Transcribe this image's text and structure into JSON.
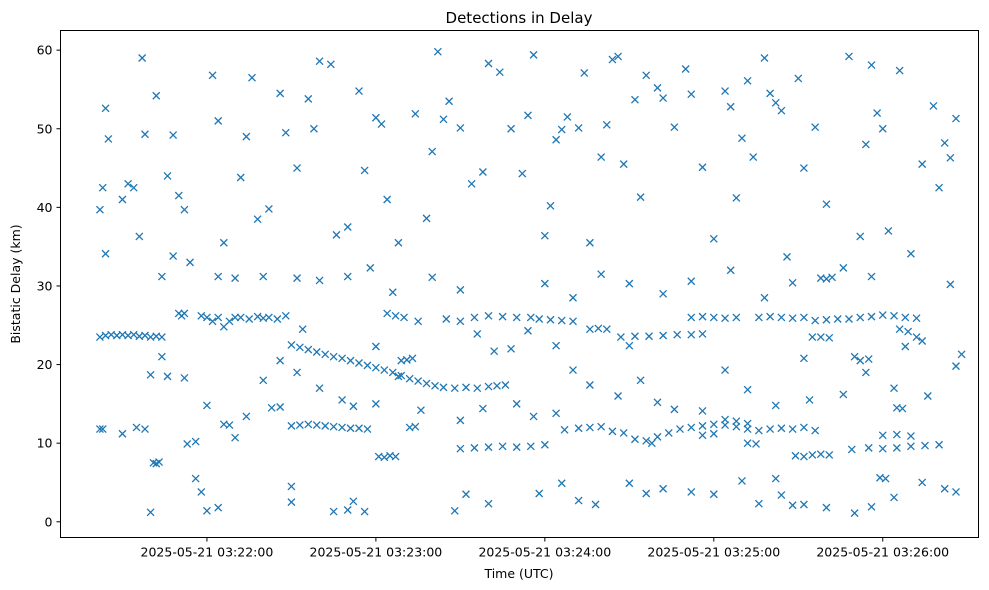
{
  "chart_data": {
    "type": "scatter",
    "title": "Detections in Delay",
    "xlabel": "Time (UTC)",
    "ylabel": "Bistatic Delay (km)",
    "x_origin": "2025-05-21 03:21:00",
    "x_unit": "seconds",
    "xlim": [
      8,
      334
    ],
    "ylim": [
      -2,
      62.5
    ],
    "x_ticks": [
      {
        "value": 60,
        "label": "2025-05-21 03:22:00"
      },
      {
        "value": 120,
        "label": "2025-05-21 03:23:00"
      },
      {
        "value": 180,
        "label": "2025-05-21 03:24:00"
      },
      {
        "value": 240,
        "label": "2025-05-21 03:25:00"
      },
      {
        "value": 300,
        "label": "2025-05-21 03:26:00"
      }
    ],
    "y_ticks": [
      {
        "value": 0,
        "label": "0"
      },
      {
        "value": 10,
        "label": "10"
      },
      {
        "value": 20,
        "label": "20"
      },
      {
        "value": 30,
        "label": "30"
      },
      {
        "value": 40,
        "label": "40"
      },
      {
        "value": 50,
        "label": "50"
      },
      {
        "value": 60,
        "label": "60"
      }
    ],
    "grid": false,
    "marker": "x",
    "color": "#1f77b4",
    "points": [
      [
        22,
        23.5
      ],
      [
        24,
        23.7
      ],
      [
        26,
        23.8
      ],
      [
        28,
        23.7
      ],
      [
        30,
        23.8
      ],
      [
        32,
        23.7
      ],
      [
        34,
        23.8
      ],
      [
        36,
        23.6
      ],
      [
        38,
        23.7
      ],
      [
        40,
        23.5
      ],
      [
        42,
        23.6
      ],
      [
        44,
        23.5
      ],
      [
        22,
        11.8
      ],
      [
        23,
        11.8
      ],
      [
        30,
        11.2
      ],
      [
        35,
        12
      ],
      [
        38,
        11.8
      ],
      [
        41,
        7.5
      ],
      [
        42,
        7.4
      ],
      [
        43,
        7.6
      ],
      [
        50,
        26.5
      ],
      [
        51,
        26.2
      ],
      [
        52,
        26.5
      ],
      [
        58,
        26.2
      ],
      [
        60,
        26
      ],
      [
        62,
        25.5
      ],
      [
        64,
        26
      ],
      [
        66,
        24.8
      ],
      [
        68,
        25.5
      ],
      [
        70,
        26
      ],
      [
        66,
        12.4
      ],
      [
        68,
        12.3
      ],
      [
        72,
        26
      ],
      [
        75,
        25.8
      ],
      [
        78,
        26.1
      ],
      [
        80,
        25.9
      ],
      [
        82,
        26
      ],
      [
        85,
        25.8
      ],
      [
        88,
        26.2
      ],
      [
        83,
        14.5
      ],
      [
        86,
        14.6
      ],
      [
        90,
        22.5
      ],
      [
        93,
        22.2
      ],
      [
        96,
        21.9
      ],
      [
        99,
        21.6
      ],
      [
        102,
        21.3
      ],
      [
        105,
        21
      ],
      [
        108,
        20.8
      ],
      [
        111,
        20.5
      ],
      [
        114,
        20.2
      ],
      [
        117,
        19.9
      ],
      [
        120,
        19.6
      ],
      [
        123,
        19.3
      ],
      [
        126,
        19
      ],
      [
        129,
        18.6
      ],
      [
        132,
        18.2
      ],
      [
        135,
        17.9
      ],
      [
        138,
        17.6
      ],
      [
        141,
        17.3
      ],
      [
        144,
        17.1
      ],
      [
        148,
        17
      ],
      [
        152,
        17.1
      ],
      [
        156,
        17
      ],
      [
        160,
        17.2
      ],
      [
        163,
        17.3
      ],
      [
        166,
        17.4
      ],
      [
        90,
        12.2
      ],
      [
        93,
        12.3
      ],
      [
        96,
        12.4
      ],
      [
        99,
        12.3
      ],
      [
        102,
        12.2
      ],
      [
        105,
        12.1
      ],
      [
        108,
        12.0
      ],
      [
        111,
        11.9
      ],
      [
        114,
        11.9
      ],
      [
        117,
        11.8
      ],
      [
        121,
        8.3
      ],
      [
        123,
        8.2
      ],
      [
        125,
        8.4
      ],
      [
        127,
        8.3
      ],
      [
        132,
        12
      ],
      [
        134,
        12.1
      ],
      [
        124,
        26.5
      ],
      [
        127,
        26.2
      ],
      [
        130,
        26
      ],
      [
        135,
        25.5
      ],
      [
        129,
        20.5
      ],
      [
        131,
        20.6
      ],
      [
        133,
        20.8
      ],
      [
        145,
        25.8
      ],
      [
        150,
        25.5
      ],
      [
        155,
        26
      ],
      [
        160,
        26.2
      ],
      [
        165,
        26.1
      ],
      [
        170,
        26
      ],
      [
        175,
        26
      ],
      [
        178,
        25.8
      ],
      [
        182,
        25.7
      ],
      [
        186,
        25.6
      ],
      [
        190,
        25.5
      ],
      [
        150,
        9.3
      ],
      [
        155,
        9.4
      ],
      [
        160,
        9.5
      ],
      [
        165,
        9.6
      ],
      [
        170,
        9.5
      ],
      [
        175,
        9.6
      ],
      [
        180,
        9.8
      ],
      [
        187,
        11.7
      ],
      [
        192,
        11.9
      ],
      [
        196,
        12
      ],
      [
        200,
        12.1
      ],
      [
        204,
        11.5
      ],
      [
        208,
        11.3
      ],
      [
        212,
        10.5
      ],
      [
        216,
        10.3
      ],
      [
        218,
        10
      ],
      [
        196,
        24.5
      ],
      [
        199,
        24.6
      ],
      [
        202,
        24.5
      ],
      [
        207,
        23.5
      ],
      [
        212,
        23.6
      ],
      [
        217,
        23.6
      ],
      [
        222,
        23.7
      ],
      [
        227,
        23.8
      ],
      [
        232,
        23.8
      ],
      [
        236,
        23.9
      ],
      [
        220,
        10.8
      ],
      [
        224,
        11.3
      ],
      [
        228,
        11.8
      ],
      [
        232,
        12
      ],
      [
        236,
        12.2
      ],
      [
        240,
        12.4
      ],
      [
        244,
        12.3
      ],
      [
        248,
        12.1
      ],
      [
        252,
        11.8
      ],
      [
        256,
        11.6
      ],
      [
        260,
        11.8
      ],
      [
        264,
        11.9
      ],
      [
        268,
        11.8
      ],
      [
        272,
        12
      ],
      [
        276,
        11.6
      ],
      [
        244,
        13
      ],
      [
        248,
        12.8
      ],
      [
        252,
        12.5
      ],
      [
        240,
        11.2
      ],
      [
        236,
        11
      ],
      [
        252,
        10
      ],
      [
        255,
        9.9
      ],
      [
        262,
        5.5
      ],
      [
        232,
        26
      ],
      [
        236,
        26.1
      ],
      [
        240,
        26
      ],
      [
        244,
        25.9
      ],
      [
        248,
        26
      ],
      [
        256,
        26
      ],
      [
        260,
        26.1
      ],
      [
        264,
        26
      ],
      [
        268,
        25.9
      ],
      [
        272,
        26
      ],
      [
        269,
        8.4
      ],
      [
        272,
        8.3
      ],
      [
        275,
        8.5
      ],
      [
        278,
        8.6
      ],
      [
        281,
        8.5
      ],
      [
        275,
        23.5
      ],
      [
        278,
        23.5
      ],
      [
        281,
        23.4
      ],
      [
        276,
        25.6
      ],
      [
        280,
        25.7
      ],
      [
        284,
        25.8
      ],
      [
        288,
        25.8
      ],
      [
        292,
        26
      ],
      [
        296,
        26.1
      ],
      [
        300,
        26.3
      ],
      [
        304,
        26.2
      ],
      [
        308,
        26
      ],
      [
        312,
        25.9
      ],
      [
        306,
        24.5
      ],
      [
        309,
        24.2
      ],
      [
        312,
        23.5
      ],
      [
        314,
        23
      ],
      [
        289,
        9.2
      ],
      [
        295,
        9.4
      ],
      [
        300,
        9.3
      ],
      [
        305,
        9.4
      ],
      [
        310,
        9.6
      ],
      [
        315,
        9.7
      ],
      [
        320,
        9.8
      ],
      [
        278,
        31
      ],
      [
        280,
        30.9
      ],
      [
        282,
        31.1
      ],
      [
        305,
        14.5
      ],
      [
        307,
        14.4
      ],
      [
        300,
        11
      ],
      [
        305,
        11.1
      ],
      [
        310,
        10.9
      ],
      [
        299,
        5.6
      ],
      [
        301,
        5.5
      ],
      [
        292,
        20.5
      ],
      [
        295,
        20.7
      ],
      [
        24,
        52.6
      ],
      [
        25,
        48.7
      ],
      [
        23,
        42.5
      ],
      [
        22,
        39.7
      ],
      [
        24,
        34.1
      ],
      [
        30,
        41
      ],
      [
        32,
        43
      ],
      [
        34,
        42.5
      ],
      [
        37,
        59
      ],
      [
        38,
        49.3
      ],
      [
        36,
        36.3
      ],
      [
        42,
        54.2
      ],
      [
        46,
        44
      ],
      [
        50,
        41.5
      ],
      [
        52,
        39.7
      ],
      [
        48,
        49.2
      ],
      [
        48,
        33.8
      ],
      [
        44,
        31.2
      ],
      [
        44,
        21
      ],
      [
        54,
        33
      ],
      [
        53,
        9.9
      ],
      [
        56,
        5.5
      ],
      [
        58,
        3.8
      ],
      [
        64,
        1.8
      ],
      [
        62,
        56.8
      ],
      [
        64,
        51
      ],
      [
        66,
        35.5
      ],
      [
        70,
        31
      ],
      [
        72,
        43.8
      ],
      [
        74,
        49
      ],
      [
        76,
        56.5
      ],
      [
        78,
        38.5
      ],
      [
        82,
        39.8
      ],
      [
        86,
        54.5
      ],
      [
        88,
        49.5
      ],
      [
        90,
        4.5
      ],
      [
        92,
        45
      ],
      [
        96,
        53.8
      ],
      [
        98,
        50
      ],
      [
        100,
        58.6
      ],
      [
        104,
        58.2
      ],
      [
        106,
        36.5
      ],
      [
        110,
        37.5
      ],
      [
        114,
        54.8
      ],
      [
        116,
        44.7
      ],
      [
        120,
        51.4
      ],
      [
        122,
        50.6
      ],
      [
        124,
        41
      ],
      [
        128,
        35.5
      ],
      [
        134,
        51.9
      ],
      [
        138,
        38.6
      ],
      [
        140,
        47.1
      ],
      [
        142,
        59.8
      ],
      [
        144,
        51.2
      ],
      [
        146,
        53.5
      ],
      [
        150,
        50.1
      ],
      [
        154,
        43
      ],
      [
        158,
        44.5
      ],
      [
        160,
        58.3
      ],
      [
        164,
        57.2
      ],
      [
        168,
        50
      ],
      [
        172,
        44.3
      ],
      [
        174,
        51.7
      ],
      [
        176,
        59.4
      ],
      [
        180,
        36.4
      ],
      [
        182,
        40.2
      ],
      [
        184,
        48.6
      ],
      [
        186,
        49.9
      ],
      [
        188,
        51.5
      ],
      [
        192,
        50.1
      ],
      [
        194,
        57.1
      ],
      [
        196,
        35.5
      ],
      [
        200,
        46.4
      ],
      [
        202,
        50.5
      ],
      [
        204,
        58.8
      ],
      [
        206,
        59.2
      ],
      [
        208,
        45.5
      ],
      [
        212,
        53.7
      ],
      [
        214,
        41.3
      ],
      [
        216,
        56.8
      ],
      [
        220,
        55.2
      ],
      [
        222,
        53.9
      ],
      [
        226,
        50.2
      ],
      [
        230,
        57.6
      ],
      [
        232,
        54.4
      ],
      [
        236,
        45.1
      ],
      [
        240,
        36
      ],
      [
        244,
        54.8
      ],
      [
        246,
        52.8
      ],
      [
        248,
        41.2
      ],
      [
        250,
        48.8
      ],
      [
        252,
        56.1
      ],
      [
        254,
        46.4
      ],
      [
        258,
        59
      ],
      [
        260,
        54.5
      ],
      [
        262,
        53.3
      ],
      [
        264,
        52.3
      ],
      [
        266,
        33.7
      ],
      [
        270,
        56.4
      ],
      [
        272,
        45
      ],
      [
        276,
        50.2
      ],
      [
        280,
        40.4
      ],
      [
        288,
        59.2
      ],
      [
        292,
        36.3
      ],
      [
        294,
        48
      ],
      [
        296,
        58.1
      ],
      [
        298,
        52
      ],
      [
        300,
        50
      ],
      [
        302,
        37
      ],
      [
        306,
        57.4
      ],
      [
        310,
        34.1
      ],
      [
        314,
        45.5
      ],
      [
        318,
        52.9
      ],
      [
        322,
        48.2
      ],
      [
        324,
        46.3
      ],
      [
        326,
        51.3
      ],
      [
        320,
        42.5
      ],
      [
        324,
        30.2
      ],
      [
        328,
        21.3
      ],
      [
        40,
        1.2
      ],
      [
        60,
        1.4
      ],
      [
        90,
        2.5
      ],
      [
        105,
        1.3
      ],
      [
        110,
        1.5
      ],
      [
        112,
        2.6
      ],
      [
        116,
        1.3
      ],
      [
        148,
        1.4
      ],
      [
        152,
        3.5
      ],
      [
        160,
        2.3
      ],
      [
        178,
        3.6
      ],
      [
        186,
        4.9
      ],
      [
        192,
        2.7
      ],
      [
        198,
        2.2
      ],
      [
        210,
        4.9
      ],
      [
        216,
        3.6
      ],
      [
        222,
        4.2
      ],
      [
        232,
        3.8
      ],
      [
        240,
        3.5
      ],
      [
        250,
        5.2
      ],
      [
        256,
        2.3
      ],
      [
        264,
        3.4
      ],
      [
        268,
        2.1
      ],
      [
        272,
        2.2
      ],
      [
        280,
        1.8
      ],
      [
        290,
        1.1
      ],
      [
        296,
        1.9
      ],
      [
        304,
        3.1
      ],
      [
        314,
        5
      ],
      [
        322,
        4.2
      ],
      [
        326,
        3.8
      ],
      [
        40,
        18.7
      ],
      [
        46,
        18.5
      ],
      [
        52,
        18.3
      ],
      [
        56,
        10.2
      ],
      [
        60,
        14.8
      ],
      [
        70,
        10.7
      ],
      [
        74,
        13.4
      ],
      [
        80,
        18
      ],
      [
        86,
        20.5
      ],
      [
        92,
        19
      ],
      [
        100,
        17
      ],
      [
        108,
        15.5
      ],
      [
        112,
        14.7
      ],
      [
        120,
        15
      ],
      [
        128,
        18.5
      ],
      [
        136,
        14.2
      ],
      [
        150,
        12.9
      ],
      [
        158,
        14.4
      ],
      [
        170,
        15
      ],
      [
        176,
        13.4
      ],
      [
        184,
        13.8
      ],
      [
        190,
        19.3
      ],
      [
        196,
        17.4
      ],
      [
        206,
        16
      ],
      [
        214,
        18
      ],
      [
        220,
        15.2
      ],
      [
        226,
        14.3
      ],
      [
        236,
        14.1
      ],
      [
        244,
        19.3
      ],
      [
        252,
        16.8
      ],
      [
        262,
        14.8
      ],
      [
        274,
        15.5
      ],
      [
        286,
        16.2
      ],
      [
        294,
        19
      ],
      [
        304,
        17
      ],
      [
        316,
        16
      ],
      [
        326,
        19.8
      ],
      [
        162,
        21.7
      ],
      [
        168,
        22
      ],
      [
        174,
        24.3
      ],
      [
        180,
        30.3
      ],
      [
        190,
        28.5
      ],
      [
        200,
        31.5
      ],
      [
        210,
        30.3
      ],
      [
        222,
        29
      ],
      [
        232,
        30.6
      ],
      [
        246,
        32
      ],
      [
        258,
        28.5
      ],
      [
        268,
        30.4
      ],
      [
        286,
        32.3
      ],
      [
        296,
        31.2
      ],
      [
        64,
        31.2
      ],
      [
        80,
        31.2
      ],
      [
        92,
        31
      ],
      [
        100,
        30.7
      ],
      [
        110,
        31.2
      ],
      [
        118,
        32.3
      ],
      [
        126,
        29.2
      ],
      [
        140,
        31.1
      ],
      [
        150,
        29.5
      ],
      [
        94,
        24.5
      ],
      [
        120,
        22.3
      ],
      [
        156,
        23.9
      ],
      [
        184,
        22.4
      ],
      [
        210,
        22.4
      ],
      [
        272,
        20.8
      ],
      [
        290,
        21
      ],
      [
        308,
        22.3
      ]
    ]
  }
}
